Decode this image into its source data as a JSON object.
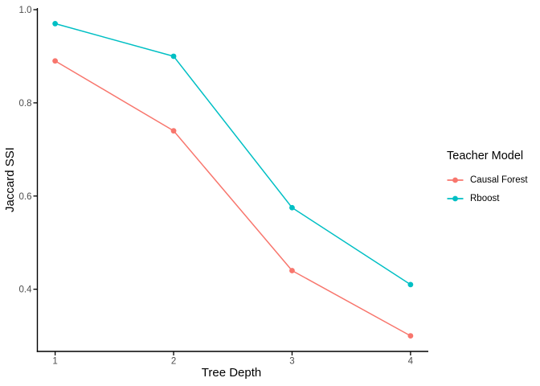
{
  "chart_data": {
    "type": "line",
    "title": "",
    "xlabel": "Tree Depth",
    "ylabel": "Jaccard SSI",
    "x": [
      1,
      2,
      3,
      4
    ],
    "x_tick_labels": [
      "1",
      "2",
      "3",
      "4"
    ],
    "y_tick_values": [
      0.4,
      0.6,
      0.8,
      1.0
    ],
    "y_tick_labels": [
      "0.4",
      "0.6",
      "0.8",
      "1.0"
    ],
    "xlim": [
      0.85,
      4.15
    ],
    "ylim": [
      0.2665,
      1.0035
    ],
    "grid": false,
    "legend": {
      "title": "Teacher Model",
      "position": "right"
    },
    "series": [
      {
        "name": "Causal Forest",
        "color": "#F8766D",
        "values": [
          0.89,
          0.74,
          0.44,
          0.3
        ]
      },
      {
        "name": "Rboost",
        "color": "#00BFC4",
        "values": [
          0.97,
          0.9,
          0.575,
          0.41
        ]
      }
    ],
    "colors": {
      "axis_line": "#000000",
      "tick_mark": "#000000",
      "tick_label": "#4d4d4d",
      "axis_title": "#000000",
      "background": "#ffffff"
    }
  }
}
